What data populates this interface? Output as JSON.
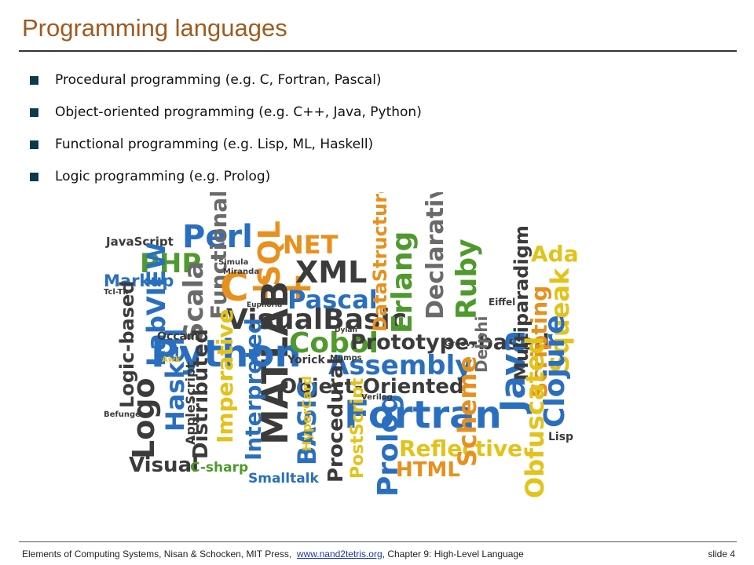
{
  "header": {
    "title": "Programming languages"
  },
  "bullets": [
    "Procedural programming (e.g. C, Fortran, Pascal)",
    "Object-oriented programming (e.g. C++, Java, Python)",
    "Functional programming (e.g. Lisp, ML, Haskell)",
    "Logic programming (e.g. Prolog)"
  ],
  "wordcloud": {
    "words": [
      "JavaScript",
      "Perl",
      "PHP",
      "Markup",
      "Scala",
      "Functional",
      "C++",
      "SQL",
      "NET",
      "XML",
      "MATLAB",
      "Pascal",
      "VisualBasic",
      "DataStructured",
      "Erlang",
      "Declarative",
      "Ruby",
      "Python",
      "LabVIEW",
      "Logic-based",
      "Haskell",
      "Logo",
      "Visual",
      "Cobol",
      "Prototype-based",
      "Assembly",
      "Object-Oriented",
      "Fortran",
      "Prolog",
      "Reflective",
      "HTML",
      "Java",
      "Scripting",
      "Squeak",
      "Ada",
      "Multiparadigm",
      "Clojure",
      "Obfuscated",
      "Scheme",
      "Delphi",
      "Imperative",
      "Distributed",
      "Interpreted",
      "BASIC",
      "Procedural",
      "PostScript",
      "HyperCard",
      "Smalltalk",
      "C-sharp",
      "AppleScript",
      "Lisp",
      "Yorick",
      "Occam",
      "Simula",
      "Miranda",
      "Euphoria",
      "Verilog",
      "Groovy",
      "Eiffel",
      "Mumps",
      "Dylan",
      "Awk",
      "Befunge",
      "Tcl-Tk"
    ]
  },
  "footer": {
    "source": "Elements of Computing Systems, Nisan & Schocken, MIT Press,",
    "link": "www.nand2tetris.org",
    "chapter": ", Chapter 9: High-Level Language",
    "slide": "slide 4"
  }
}
